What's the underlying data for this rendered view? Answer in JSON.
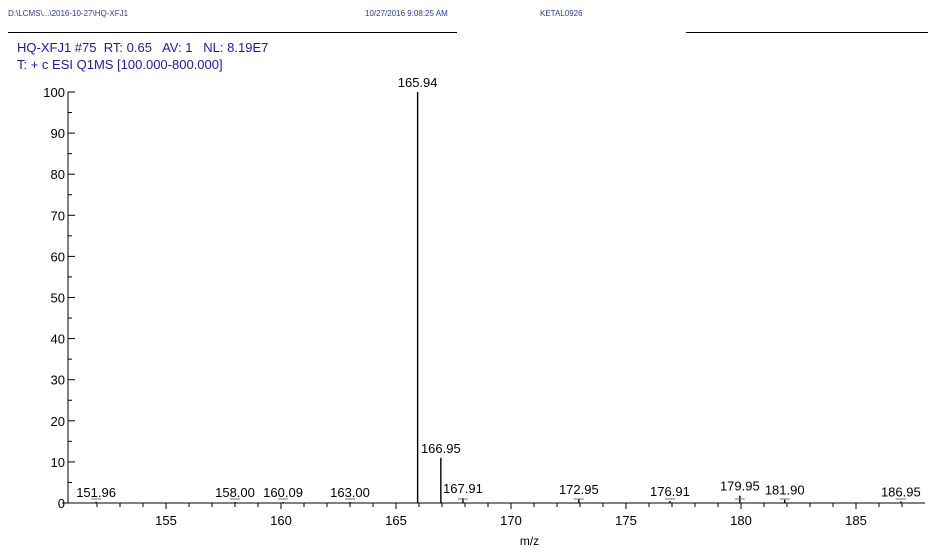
{
  "header": {
    "path": "D:\\LCMS\\...\\2016-10-27\\HQ-XFJ1",
    "datetime": "10/27/2016 9:08:25 AM",
    "sample": "KETAL0926"
  },
  "scan": {
    "name": "HQ-XFJ1",
    "scan_no": "#75",
    "rt_label": "RT:",
    "rt": "0.65",
    "av_label": "AV:",
    "av": "1",
    "nl_label": "NL:",
    "nl": "8.19E7",
    "filter": "T: + c ESI Q1MS [100.000-800.000]"
  },
  "chart_data": {
    "type": "bar",
    "xlabel": "m/z",
    "ylabel": "",
    "xlim": [
      151,
      188
    ],
    "ylim": [
      0,
      100
    ],
    "xticks": [
      155,
      160,
      165,
      170,
      175,
      180,
      185
    ],
    "yticks": [
      0,
      10,
      20,
      30,
      40,
      50,
      60,
      70,
      80,
      90,
      100
    ],
    "grid": false,
    "peaks": [
      {
        "mz": 151.96,
        "intensity": 0.3
      },
      {
        "mz": 158.0,
        "intensity": 0.2
      },
      {
        "mz": 160.09,
        "intensity": 0.2
      },
      {
        "mz": 163.0,
        "intensity": 0.2
      },
      {
        "mz": 165.94,
        "intensity": 100
      },
      {
        "mz": 166.95,
        "intensity": 11
      },
      {
        "mz": 167.91,
        "intensity": 1.2
      },
      {
        "mz": 172.95,
        "intensity": 1.0
      },
      {
        "mz": 176.91,
        "intensity": 0.5
      },
      {
        "mz": 179.95,
        "intensity": 1.8
      },
      {
        "mz": 181.9,
        "intensity": 0.8
      },
      {
        "mz": 186.95,
        "intensity": 0.4
      }
    ],
    "labels": [
      "151.96",
      "158.00",
      "160.09",
      "163.00",
      "165.94",
      "166.95",
      "167.91",
      "172.95",
      "176.91",
      "179.95",
      "181.90",
      "186.95"
    ],
    "colors": {
      "peak": "#000000",
      "label": "#000000",
      "text": "#1a1aa0",
      "minor": "#2e9e2e"
    }
  }
}
